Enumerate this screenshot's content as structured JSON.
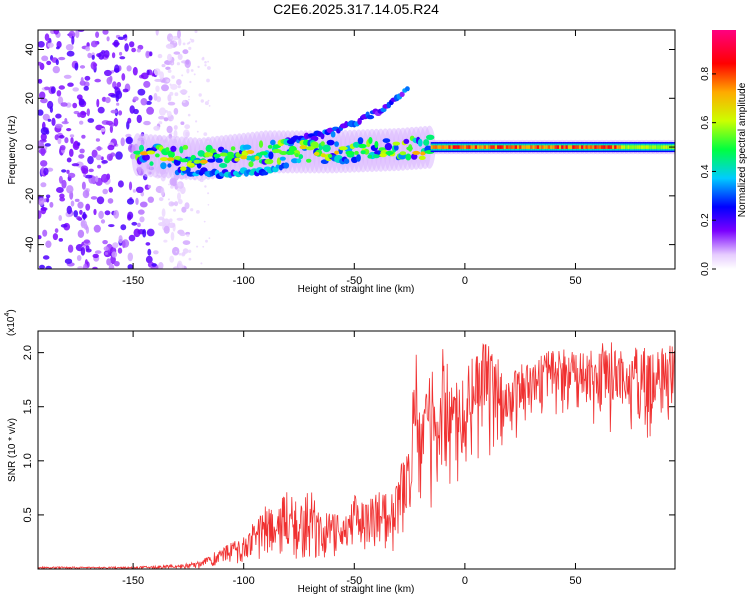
{
  "figure": {
    "title": "C2E6.2025.317.14.05.R24"
  },
  "chart_data": [
    {
      "type": "heatmap",
      "panel": "top",
      "title": "C2E6.2025.317.14.05.R24",
      "xlabel": "Height of straight line (km)",
      "ylabel": "Frequency (Hz)",
      "xlim": [
        -193,
        95
      ],
      "ylim": [
        -50,
        48
      ],
      "x_ticks": [
        -150,
        -100,
        -50,
        0,
        50
      ],
      "y_ticks": [
        -40,
        -20,
        0,
        20,
        40
      ],
      "colorbar": {
        "label": "Normalized spectral amplitude",
        "range": [
          0.0,
          0.98
        ],
        "ticks": [
          0.0,
          0.2,
          0.4,
          0.6,
          0.8
        ],
        "tick_labels": [
          "0.0",
          "0.2",
          "0.4",
          "0.6",
          "0.8"
        ],
        "colormap": "rainbow (white-violet-blue-cyan-green-yellow-red-magenta)"
      },
      "features": [
        {
          "name": "main Doppler band",
          "x_range": [
            -150,
            95
          ],
          "freq_center_at_x": [
            [
              -150,
              -3
            ],
            [
              -120,
              -5
            ],
            [
              -90,
              -2
            ],
            [
              -60,
              -2
            ],
            [
              -30,
              -1
            ],
            [
              -15,
              0
            ],
            [
              0,
              0
            ],
            [
              95,
              0
            ]
          ],
          "peak_amplitude": 0.9
        },
        {
          "name": "lower branch",
          "x_range": [
            -130,
            -80
          ],
          "freq_at_x": [
            [
              -130,
              -10
            ],
            [
              -110,
              -11
            ],
            [
              -90,
              -10
            ],
            [
              -80,
              -8
            ]
          ]
        },
        {
          "name": "upper rising branch",
          "x_range": [
            -80,
            -25
          ],
          "freq_at_x": [
            [
              -80,
              2
            ],
            [
              -60,
              6
            ],
            [
              -40,
              14
            ],
            [
              -25,
              24
            ]
          ]
        },
        {
          "name": "broadband noise",
          "x_range": [
            -193,
            -125
          ],
          "freq_range": [
            -50,
            48
          ],
          "amplitude": 0.1
        }
      ],
      "colors": {
        "low": "#f3e6ff",
        "mid": "#00e0e0",
        "high": "#ff0000"
      }
    },
    {
      "type": "line",
      "panel": "bottom",
      "xlabel": "Height of straight line (km)",
      "ylabel": "SNR (10 * v/v)",
      "y_multiplier_label": "(x10",
      "y_multiplier_exponent": "4",
      "y_multiplier_close": ")",
      "xlim": [
        -193,
        95
      ],
      "ylim": [
        0,
        2.2
      ],
      "x_ticks": [
        -150,
        -100,
        -50,
        0,
        50
      ],
      "y_ticks": [
        0.5,
        1.0,
        1.5,
        2.0
      ],
      "y_tick_labels": [
        "0.5",
        "1.0",
        "1.5",
        "2.0"
      ],
      "color": "#f03030",
      "series": [
        {
          "name": "SNR envelope",
          "x": [
            -193,
            -150,
            -130,
            -120,
            -110,
            -100,
            -95,
            -90,
            -85,
            -80,
            -75,
            -70,
            -65,
            -60,
            -55,
            -50,
            -45,
            -40,
            -35,
            -30,
            -25,
            -22,
            -20,
            -18,
            -15,
            -12,
            -10,
            -5,
            0,
            5,
            10,
            15,
            20,
            25,
            30,
            35,
            40,
            45,
            50,
            55,
            60,
            65,
            70,
            75,
            80,
            85,
            90,
            95
          ],
          "upper": [
            0.02,
            0.02,
            0.04,
            0.07,
            0.2,
            0.3,
            0.45,
            0.6,
            0.55,
            0.8,
            0.55,
            0.78,
            0.5,
            0.55,
            0.45,
            0.7,
            0.6,
            0.7,
            0.75,
            0.9,
            1.25,
            2.1,
            1.5,
            1.6,
            1.9,
            1.35,
            2.1,
            1.7,
            1.8,
            2.05,
            2.1,
            2.0,
            1.75,
            1.95,
            1.85,
            2.0,
            2.05,
            2.05,
            2.0,
            2.0,
            2.1,
            2.12,
            2.05,
            2.05,
            2.1,
            2.0,
            2.08,
            2.05
          ],
          "lower": [
            0.0,
            0.0,
            0.0,
            0.0,
            0.02,
            0.02,
            0.04,
            0.05,
            0.05,
            0.08,
            0.07,
            0.08,
            0.08,
            0.08,
            0.1,
            0.12,
            0.1,
            0.15,
            0.1,
            0.15,
            0.2,
            0.4,
            0.45,
            0.5,
            0.45,
            0.5,
            0.6,
            0.7,
            0.8,
            0.9,
            0.9,
            1.0,
            1.1,
            1.2,
            1.25,
            1.3,
            1.35,
            1.3,
            1.3,
            1.35,
            1.3,
            1.25,
            1.3,
            1.2,
            1.2,
            1.15,
            1.2,
            1.3
          ]
        }
      ]
    }
  ]
}
